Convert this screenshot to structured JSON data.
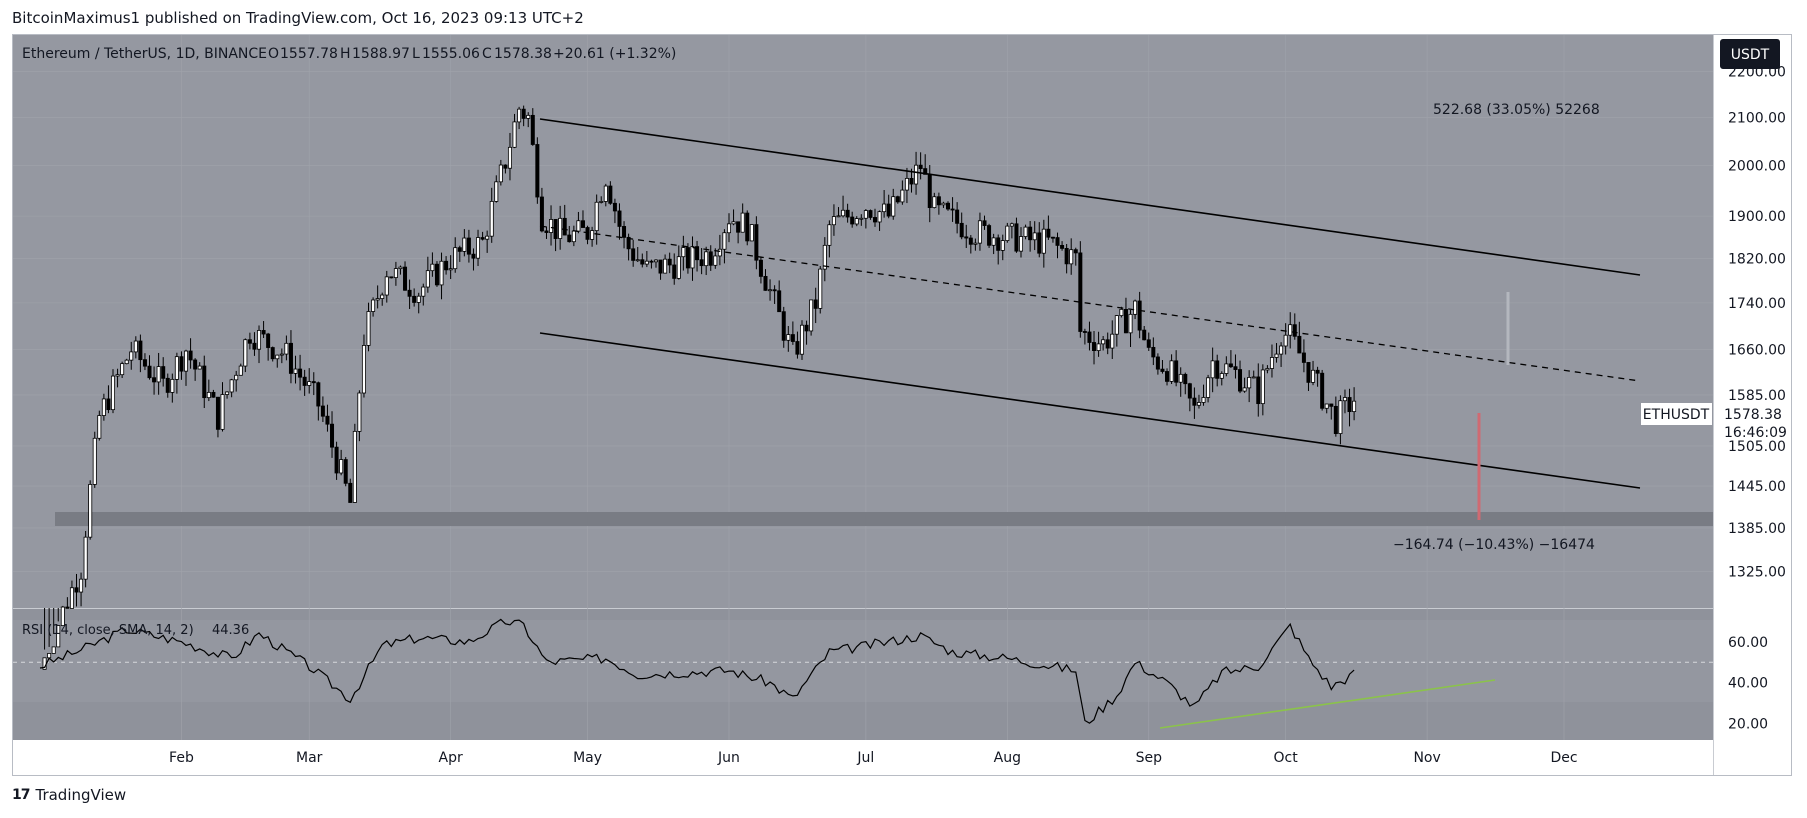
{
  "header": {
    "published_by": "BitcoinMaximus1 published on TradingView.com, Oct 16, 2023 09:13 UTC+2"
  },
  "legend": {
    "symbol": "Ethereum / TetherUS, 1D, BINANCE",
    "open_label": "O",
    "open": "1557.78",
    "high_label": "H",
    "high": "1588.97",
    "low_label": "L",
    "low": "1555.06",
    "close_label": "C",
    "close": "1578.38",
    "change": "+20.61 (+1.32%)"
  },
  "currency_button": "USDT",
  "price_tag": {
    "symbol": "ETHUSDT",
    "price": "1578.38",
    "countdown": "16:46:09"
  },
  "measure_up": {
    "text": "522.68 (33.05%) 52268"
  },
  "measure_down": {
    "text": "−164.74 (−10.43%) −16474"
  },
  "rsi": {
    "label": "RSI (14, close, SMA, 14, 2)",
    "value": "44.36"
  },
  "footer": {
    "brand": "TradingView"
  },
  "colors": {
    "chart_bg": "#9598a1",
    "rsi_bg": "#8f929b",
    "grid": "#a3a6ae",
    "candle_up": "#ffffff",
    "candle_down": "#000000",
    "support_band": "#797c84",
    "rsi_trendline": "#8bc34a",
    "measure_down": "#d06a72"
  },
  "chart_data": [
    {
      "type": "candlestick",
      "title": "Ethereum / TetherUS, 1D, BINANCE",
      "x_ticks": [
        "Feb",
        "Mar",
        "Apr",
        "May",
        "Jun",
        "Jul",
        "Aug",
        "Sep",
        "Oct",
        "Nov",
        "Dec"
      ],
      "y_ticks": [
        "2200.00",
        "2100.00",
        "2000.00",
        "1900.00",
        "1820.00",
        "1740.00",
        "1660.00",
        "1585.00",
        "1505.00",
        "1445.00",
        "1385.00",
        "1325.00"
      ],
      "y_scale": "log",
      "ylim": [
        1290,
        2260
      ],
      "close_path": [
        [
          "2023-01-01",
          1200
        ],
        [
          "2023-01-10",
          1330
        ],
        [
          "2023-01-14",
          1550
        ],
        [
          "2023-01-21",
          1660
        ],
        [
          "2023-01-28",
          1600
        ],
        [
          "2023-02-02",
          1660
        ],
        [
          "2023-02-09",
          1550
        ],
        [
          "2023-02-16",
          1690
        ],
        [
          "2023-02-24",
          1650
        ],
        [
          "2023-03-03",
          1570
        ],
        [
          "2023-03-10",
          1420
        ],
        [
          "2023-03-13",
          1680
        ],
        [
          "2023-03-18",
          1800
        ],
        [
          "2023-03-25",
          1760
        ],
        [
          "2023-04-01",
          1820
        ],
        [
          "2023-04-08",
          1850
        ],
        [
          "2023-04-13",
          2010
        ],
        [
          "2023-04-16",
          2120
        ],
        [
          "2023-04-18",
          2100
        ],
        [
          "2023-04-21",
          1900
        ],
        [
          "2023-04-26",
          1860
        ],
        [
          "2023-05-01",
          1870
        ],
        [
          "2023-05-05",
          1980
        ],
        [
          "2023-05-09",
          1850
        ],
        [
          "2023-05-14",
          1800
        ],
        [
          "2023-05-20",
          1810
        ],
        [
          "2023-05-28",
          1830
        ],
        [
          "2023-06-01",
          1900
        ],
        [
          "2023-06-05",
          1880
        ],
        [
          "2023-06-10",
          1760
        ],
        [
          "2023-06-15",
          1650
        ],
        [
          "2023-06-20",
          1740
        ],
        [
          "2023-06-23",
          1880
        ],
        [
          "2023-07-01",
          1920
        ],
        [
          "2023-07-06",
          1900
        ],
        [
          "2023-07-13",
          2000
        ],
        [
          "2023-07-16",
          1910
        ],
        [
          "2023-07-25",
          1870
        ],
        [
          "2023-08-01",
          1860
        ],
        [
          "2023-08-10",
          1850
        ],
        [
          "2023-08-16",
          1820
        ],
        [
          "2023-08-17",
          1690
        ],
        [
          "2023-08-22",
          1670
        ],
        [
          "2023-08-29",
          1730
        ],
        [
          "2023-09-01",
          1650
        ],
        [
          "2023-09-05",
          1630
        ],
        [
          "2023-09-11",
          1560
        ],
        [
          "2023-09-15",
          1640
        ],
        [
          "2023-09-20",
          1620
        ],
        [
          "2023-09-25",
          1590
        ],
        [
          "2023-09-30",
          1690
        ],
        [
          "2023-10-02",
          1680
        ],
        [
          "2023-10-05",
          1640
        ],
        [
          "2023-10-10",
          1570
        ],
        [
          "2023-10-12",
          1545
        ],
        [
          "2023-10-16",
          1578.38
        ]
      ],
      "annotations": [
        "522.68 (33.05%) 52268",
        "−164.74 (−10.43%) −16474"
      ]
    },
    {
      "type": "line",
      "title": "RSI (14, close, SMA, 14, 2)",
      "y_ticks": [
        "60.00",
        "40.00",
        "20.00"
      ],
      "ylim": [
        12,
        76
      ],
      "series": [
        {
          "values": [
            [
              "2023-01-01",
              48
            ],
            [
              "2023-01-10",
              56
            ],
            [
              "2023-01-20",
              66
            ],
            [
              "2023-02-01",
              60
            ],
            [
              "2023-02-12",
              52
            ],
            [
              "2023-02-18",
              64
            ],
            [
              "2023-03-01",
              48
            ],
            [
              "2023-03-10",
              32
            ],
            [
              "2023-03-17",
              58
            ],
            [
              "2023-03-25",
              62
            ],
            [
              "2023-04-05",
              60
            ],
            [
              "2023-04-13",
              70
            ],
            [
              "2023-04-17",
              68
            ],
            [
              "2023-04-22",
              50
            ],
            [
              "2023-05-05",
              52
            ],
            [
              "2023-05-12",
              44
            ],
            [
              "2023-06-01",
              46
            ],
            [
              "2023-06-10",
              40
            ],
            [
              "2023-06-15",
              32
            ],
            [
              "2023-06-23",
              55
            ],
            [
              "2023-07-01",
              58
            ],
            [
              "2023-07-13",
              63
            ],
            [
              "2023-07-20",
              55
            ],
            [
              "2023-08-01",
              52
            ],
            [
              "2023-08-16",
              46
            ],
            [
              "2023-08-18",
              20
            ],
            [
              "2023-08-25",
              34
            ],
            [
              "2023-08-29",
              50
            ],
            [
              "2023-09-05",
              40
            ],
            [
              "2023-09-11",
              28
            ],
            [
              "2023-09-17",
              45
            ],
            [
              "2023-09-25",
              48
            ],
            [
              "2023-09-30",
              62
            ],
            [
              "2023-10-02",
              68
            ],
            [
              "2023-10-06",
              52
            ],
            [
              "2023-10-11",
              38
            ],
            [
              "2023-10-16",
              44.36
            ]
          ]
        }
      ]
    }
  ]
}
